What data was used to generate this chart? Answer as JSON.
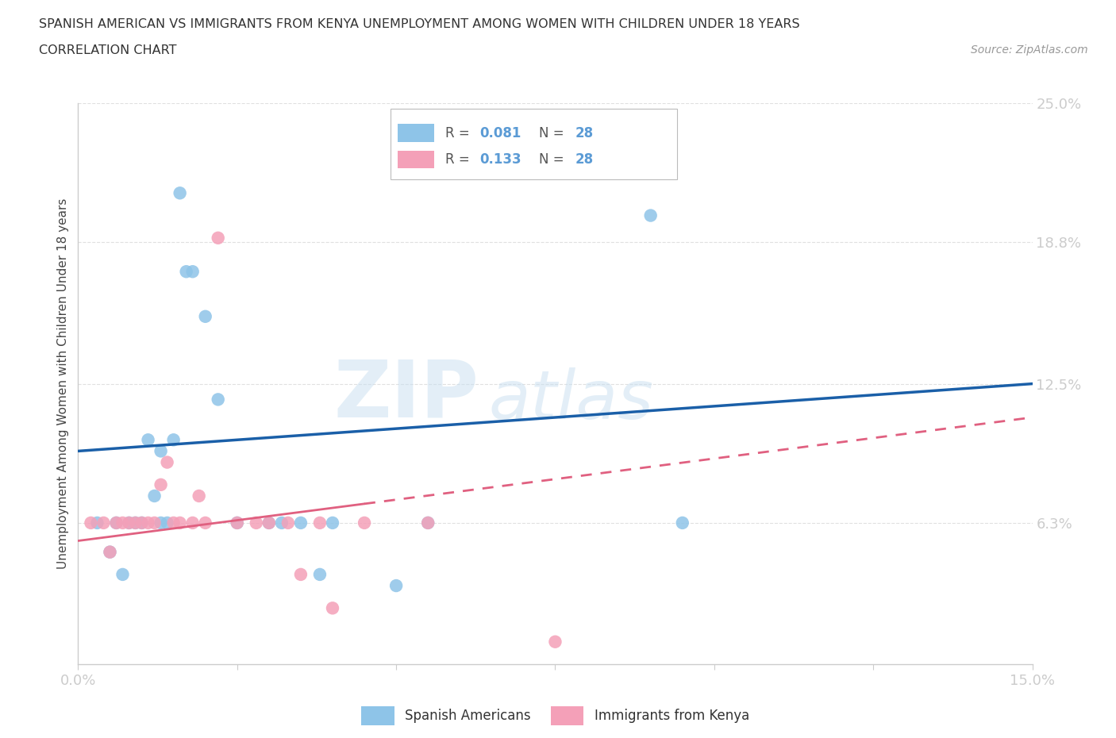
{
  "title_line1": "SPANISH AMERICAN VS IMMIGRANTS FROM KENYA UNEMPLOYMENT AMONG WOMEN WITH CHILDREN UNDER 18 YEARS",
  "title_line2": "CORRELATION CHART",
  "source": "Source: ZipAtlas.com",
  "ylabel": "Unemployment Among Women with Children Under 18 years",
  "xlim": [
    0.0,
    0.15
  ],
  "ylim": [
    0.0,
    0.25
  ],
  "ytick_vals": [
    0.0,
    0.063,
    0.125,
    0.188,
    0.25
  ],
  "ytick_labels": [
    "",
    "6.3%",
    "12.5%",
    "18.8%",
    "25.0%"
  ],
  "xtick_vals": [
    0.0,
    0.025,
    0.05,
    0.075,
    0.1,
    0.125,
    0.15
  ],
  "xtick_labels": [
    "0.0%",
    "",
    "",
    "",
    "",
    "",
    "15.0%"
  ],
  "legend_label1": "Spanish Americans",
  "legend_label2": "Immigrants from Kenya",
  "r1": "0.081",
  "n1": "28",
  "r2": "0.133",
  "n2": "28",
  "color_blue": "#8ec4e8",
  "color_pink": "#f4a0b8",
  "color_blue_line": "#1a5fa8",
  "color_pink_line": "#e06080",
  "watermark_zip": "ZIP",
  "watermark_atlas": "atlas",
  "background_color": "#ffffff",
  "grid_color": "#e0e0e0",
  "tick_color": "#5b9bd5",
  "blue_scatter_x": [
    0.003,
    0.005,
    0.006,
    0.007,
    0.008,
    0.009,
    0.01,
    0.011,
    0.012,
    0.013,
    0.013,
    0.014,
    0.015,
    0.016,
    0.017,
    0.018,
    0.02,
    0.022,
    0.025,
    0.03,
    0.032,
    0.035,
    0.038,
    0.04,
    0.05,
    0.055,
    0.09,
    0.095
  ],
  "blue_scatter_y": [
    0.063,
    0.05,
    0.063,
    0.04,
    0.063,
    0.063,
    0.063,
    0.1,
    0.075,
    0.095,
    0.063,
    0.063,
    0.1,
    0.21,
    0.175,
    0.175,
    0.155,
    0.118,
    0.063,
    0.063,
    0.063,
    0.063,
    0.04,
    0.063,
    0.035,
    0.063,
    0.2,
    0.063
  ],
  "pink_scatter_x": [
    0.002,
    0.004,
    0.005,
    0.006,
    0.007,
    0.008,
    0.009,
    0.01,
    0.011,
    0.012,
    0.013,
    0.014,
    0.015,
    0.016,
    0.018,
    0.019,
    0.02,
    0.022,
    0.025,
    0.028,
    0.03,
    0.033,
    0.035,
    0.038,
    0.04,
    0.045,
    0.055,
    0.075
  ],
  "pink_scatter_y": [
    0.063,
    0.063,
    0.05,
    0.063,
    0.063,
    0.063,
    0.063,
    0.063,
    0.063,
    0.063,
    0.08,
    0.09,
    0.063,
    0.063,
    0.063,
    0.075,
    0.063,
    0.19,
    0.063,
    0.063,
    0.063,
    0.063,
    0.04,
    0.063,
    0.025,
    0.063,
    0.063,
    0.01
  ],
  "blue_line_x0": 0.0,
  "blue_line_y0": 0.095,
  "blue_line_x1": 0.15,
  "blue_line_y1": 0.125,
  "pink_line_x0": 0.0,
  "pink_line_y0": 0.055,
  "pink_line_x1": 0.15,
  "pink_line_y1": 0.11
}
